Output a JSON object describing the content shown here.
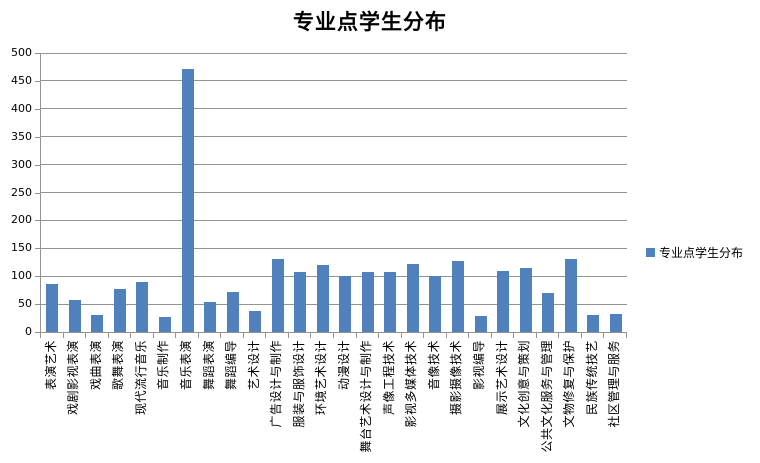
{
  "chart": {
    "title": "专业点学生分布",
    "legend_label": "专业点学生分布"
  },
  "chart_data": {
    "type": "bar",
    "title": "专业点学生分布",
    "series_name": "专业点学生分布",
    "categories": [
      "表演艺术",
      "戏剧影视表演",
      "戏曲表演",
      "歌舞表演",
      "现代流行音乐",
      "音乐制作",
      "音乐表演",
      "舞蹈表演",
      "舞蹈编导",
      "艺术设计",
      "广告设计与制作",
      "服装与服饰设计",
      "环境艺术设计",
      "动漫设计",
      "舞台艺术设计与制作",
      "声像工程技术",
      "影视多媒体技术",
      "音像技术",
      "摄影摄像技术",
      "影视编导",
      "展示艺术设计",
      "文化创意与策划",
      "公共文化服务与管理",
      "文物修复与保护",
      "民族传统技艺",
      "社区管理与服务"
    ],
    "values": [
      86,
      57,
      31,
      77,
      90,
      26,
      472,
      53,
      72,
      37,
      131,
      107,
      120,
      101,
      107,
      107,
      121,
      101,
      128,
      29,
      109,
      114,
      70,
      131,
      31,
      32
    ],
    "xlabel": "",
    "ylabel": "",
    "ylim": [
      0,
      500
    ],
    "ytick_step": 50,
    "grid": true,
    "legend_position": "right",
    "bar_color": "#4F81BD",
    "gridline_color": "#949494",
    "axis_color": "#949494",
    "text_color": "#000000"
  }
}
